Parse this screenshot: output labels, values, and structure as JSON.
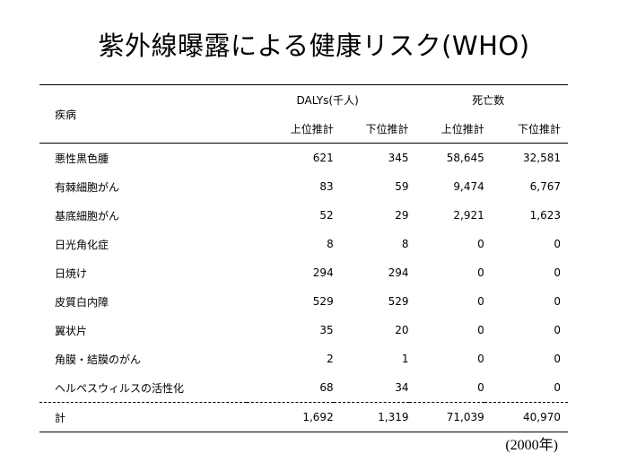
{
  "title": "紫外線曝露による健康リスク(WHO)",
  "header": {
    "disease_label": "疾病",
    "dalys_label": "DALYs(千人)",
    "deaths_label": "死亡数",
    "upper_label": "上位推計",
    "lower_label": "下位推計"
  },
  "rows": [
    {
      "name": "悪性黒色腫",
      "dalys_upper": "621",
      "dalys_lower": "345",
      "deaths_upper": "58,645",
      "deaths_lower": "32,581"
    },
    {
      "name": "有棘細胞がん",
      "dalys_upper": "83",
      "dalys_lower": "59",
      "deaths_upper": "9,474",
      "deaths_lower": "6,767"
    },
    {
      "name": "基底細胞がん",
      "dalys_upper": "52",
      "dalys_lower": "29",
      "deaths_upper": "2,921",
      "deaths_lower": "1,623"
    },
    {
      "name": "日光角化症",
      "dalys_upper": "8",
      "dalys_lower": "8",
      "deaths_upper": "0",
      "deaths_lower": "0"
    },
    {
      "name": "日焼け",
      "dalys_upper": "294",
      "dalys_lower": "294",
      "deaths_upper": "0",
      "deaths_lower": "0"
    },
    {
      "name": "皮質白内障",
      "dalys_upper": "529",
      "dalys_lower": "529",
      "deaths_upper": "0",
      "deaths_lower": "0"
    },
    {
      "name": "翼状片",
      "dalys_upper": "35",
      "dalys_lower": "20",
      "deaths_upper": "0",
      "deaths_lower": "0"
    },
    {
      "name": "角膜・結膜のがん",
      "dalys_upper": "2",
      "dalys_lower": "1",
      "deaths_upper": "0",
      "deaths_lower": "0"
    },
    {
      "name": "ヘルペスウィルスの活性化",
      "dalys_upper": "68",
      "dalys_lower": "34",
      "deaths_upper": "0",
      "deaths_lower": "0"
    }
  ],
  "total": {
    "name": "計",
    "dalys_upper": "1,692",
    "dalys_lower": "1,319",
    "deaths_upper": "71,039",
    "deaths_lower": "40,970"
  },
  "note": "(2000年)"
}
